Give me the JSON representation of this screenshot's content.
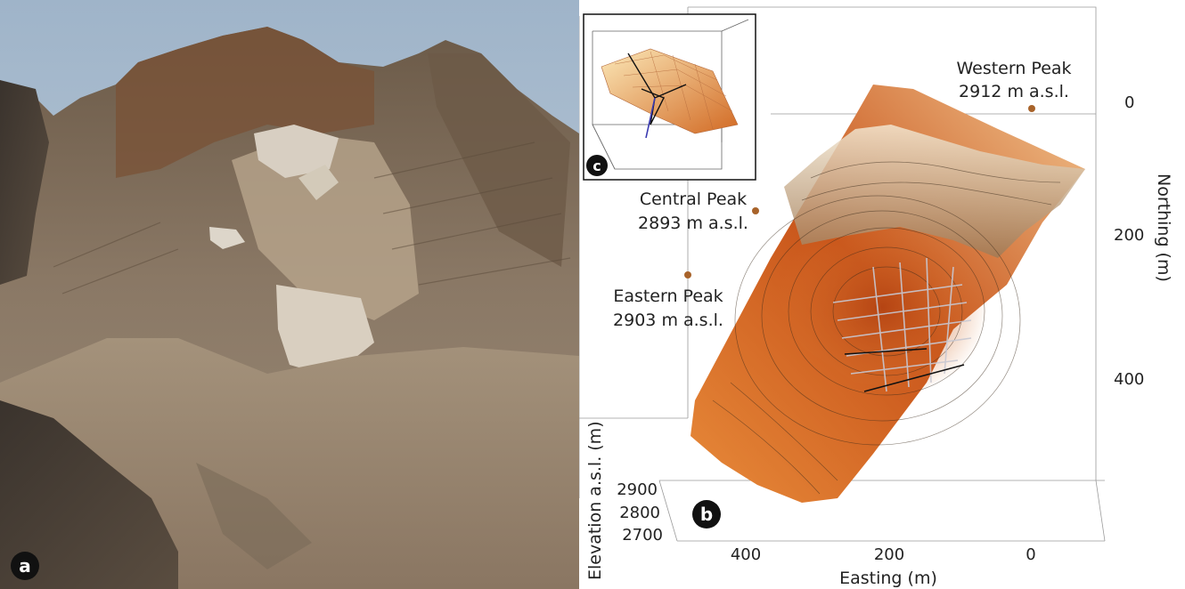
{
  "panel_labels": {
    "a": "a",
    "b": "b",
    "c": "c"
  },
  "peaks": [
    {
      "name": "Western Peak",
      "elevation": "2912 m a.s.l."
    },
    {
      "name": "Central Peak",
      "elevation": "2893 m a.s.l."
    },
    {
      "name": "Eastern Peak",
      "elevation": "2903 m a.s.l."
    }
  ],
  "axes": {
    "easting": {
      "label": "Easting (m)",
      "ticks": [
        "400",
        "200",
        "0"
      ]
    },
    "northing": {
      "label": "Northing (m)",
      "ticks": [
        "0",
        "200",
        "400"
      ]
    },
    "elevation": {
      "label": "Elevation a.s.l. (m)",
      "ticks": [
        "2900",
        "2800",
        "2700"
      ]
    }
  },
  "colors": {
    "peak_marker": "#a8632a",
    "badge": "#111111",
    "surface_dark": "#c8541a",
    "surface_light": "#f4c488"
  }
}
